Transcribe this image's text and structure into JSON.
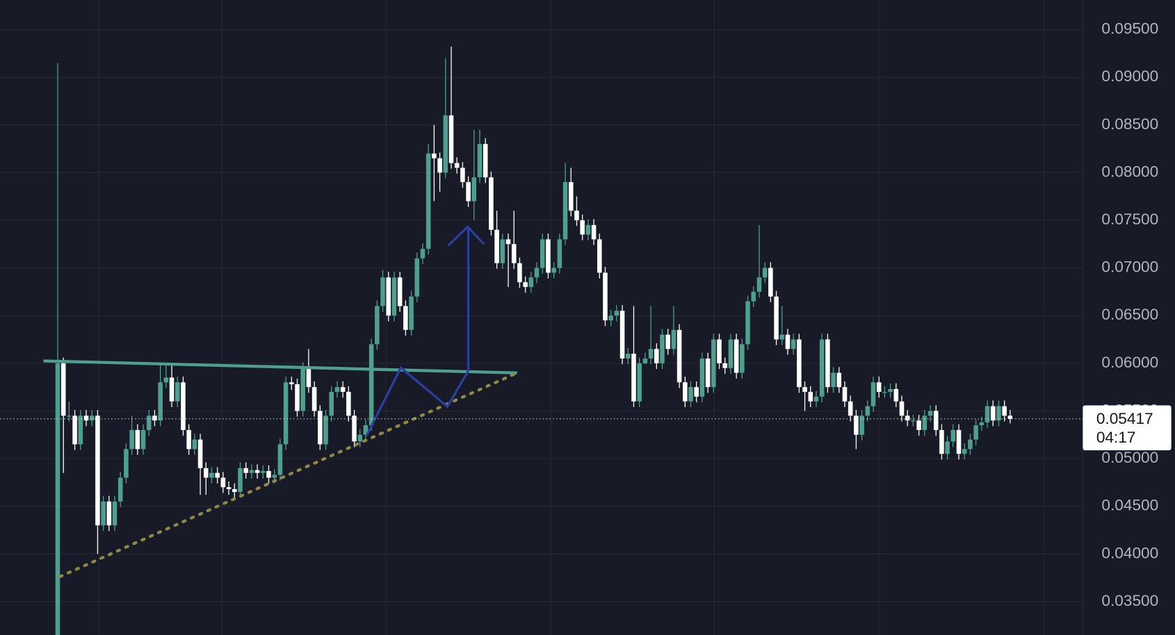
{
  "chart_data": {
    "type": "candlestick",
    "up_color": "#4e9f8f",
    "down_color": "#ffffff",
    "ylim": [
      0.0315,
      0.0981
    ],
    "yticks": [
      {
        "value": 0.095,
        "label": "0.09500"
      },
      {
        "value": 0.09,
        "label": "0.09000"
      },
      {
        "value": 0.085,
        "label": "0.08500"
      },
      {
        "value": 0.08,
        "label": "0.08000"
      },
      {
        "value": 0.075,
        "label": "0.07500"
      },
      {
        "value": 0.07,
        "label": "0.07000"
      },
      {
        "value": 0.065,
        "label": "0.06500"
      },
      {
        "value": 0.06,
        "label": "0.06000"
      },
      {
        "value": 0.055,
        "label": "0.05500"
      },
      {
        "value": 0.05,
        "label": "0.05000"
      },
      {
        "value": 0.045,
        "label": "0.04500"
      },
      {
        "value": 0.04,
        "label": "0.04000"
      },
      {
        "value": 0.035,
        "label": "0.03500"
      }
    ],
    "grid": true,
    "last_price": 0.05417,
    "countdown": "04:17",
    "open": [
      0.0315,
      0.06,
      0.0545,
      0.0545,
      0.0515,
      0.0545,
      0.054,
      0.0545,
      0.043,
      0.0455,
      0.043,
      0.0455,
      0.048,
      0.051,
      0.053,
      0.051,
      0.053,
      0.0545,
      0.054,
      0.058,
      0.0585,
      0.056,
      0.058,
      0.053,
      0.051,
      0.052,
      0.049,
      0.048,
      0.0485,
      0.048,
      0.047,
      0.0468,
      0.0465,
      0.049,
      0.0485,
      0.0488,
      0.0485,
      0.0487,
      0.048,
      0.0483,
      0.0515,
      0.058,
      0.0578,
      0.055,
      0.0595,
      0.0575,
      0.055,
      0.0515,
      0.0545,
      0.057,
      0.0575,
      0.057,
      0.0545,
      0.0518,
      0.0525,
      0.0535,
      0.062,
      0.066,
      0.069,
      0.065,
      0.069,
      0.066,
      0.0635,
      0.067,
      0.071,
      0.072,
      0.082,
      0.0815,
      0.08,
      0.086,
      0.081,
      0.0805,
      0.079,
      0.077,
      0.0795,
      0.083,
      0.0795,
      0.074,
      0.0705,
      0.073,
      0.0725,
      0.0705,
      0.0685,
      0.068,
      0.069,
      0.07,
      0.073,
      0.0695,
      0.07,
      0.073,
      0.079,
      0.076,
      0.075,
      0.0735,
      0.0745,
      0.073,
      0.0695,
      0.0645,
      0.065,
      0.0655,
      0.0605,
      0.061,
      0.056,
      0.06,
      0.0605,
      0.0615,
      0.06,
      0.063,
      0.0615,
      0.0635,
      0.058,
      0.056,
      0.0575,
      0.0565,
      0.0605,
      0.0575,
      0.0625,
      0.06,
      0.0595,
      0.0625,
      0.059,
      0.062,
      0.0665,
      0.0675,
      0.069,
      0.07,
      0.067,
      0.0625,
      0.063,
      0.0615,
      0.0625,
      0.0575,
      0.057,
      0.056,
      0.0565,
      0.0625,
      0.0575,
      0.059,
      0.0575,
      0.056,
      0.0545,
      0.0525,
      0.0545,
      0.0555,
      0.058,
      0.057,
      0.057,
      0.0573,
      0.056,
      0.0545,
      0.054,
      0.054,
      0.053,
      0.0545,
      0.055,
      0.053,
      0.0505,
      0.0518,
      0.053,
      0.0505,
      0.051,
      0.052,
      0.0535,
      0.0538,
      0.0555,
      0.054,
      0.0555,
      0.0545
    ],
    "high": [
      0.0915,
      0.0606,
      0.056,
      0.0551,
      0.0551,
      0.0551,
      0.0551,
      0.0551,
      0.0461,
      0.0461,
      0.0461,
      0.0486,
      0.0516,
      0.0545,
      0.0536,
      0.0536,
      0.0551,
      0.0551,
      0.06,
      0.06,
      0.06,
      0.0586,
      0.0586,
      0.0536,
      0.0526,
      0.0526,
      0.0496,
      0.0491,
      0.0491,
      0.0486,
      0.0476,
      0.0474,
      0.0496,
      0.0496,
      0.0494,
      0.0494,
      0.0493,
      0.0493,
      0.0489,
      0.0521,
      0.0586,
      0.0586,
      0.0584,
      0.0601,
      0.0615,
      0.0581,
      0.0556,
      0.0551,
      0.0576,
      0.0581,
      0.0581,
      0.0576,
      0.0551,
      0.0531,
      0.0541,
      0.0626,
      0.0666,
      0.0698,
      0.0696,
      0.0696,
      0.0696,
      0.0666,
      0.0676,
      0.0716,
      0.0726,
      0.083,
      0.085,
      0.0821,
      0.092,
      0.0932,
      0.0816,
      0.0811,
      0.0796,
      0.0845,
      0.0845,
      0.0836,
      0.0801,
      0.076,
      0.0736,
      0.0736,
      0.076,
      0.0711,
      0.0691,
      0.0696,
      0.0706,
      0.0736,
      0.0736,
      0.0706,
      0.0736,
      0.081,
      0.0805,
      0.0775,
      0.0756,
      0.0751,
      0.0751,
      0.0736,
      0.0701,
      0.0656,
      0.0661,
      0.0661,
      0.0616,
      0.066,
      0.0606,
      0.0611,
      0.066,
      0.0621,
      0.0636,
      0.0636,
      0.066,
      0.0641,
      0.0586,
      0.0581,
      0.0581,
      0.0611,
      0.0611,
      0.0631,
      0.0631,
      0.0606,
      0.0631,
      0.0631,
      0.0626,
      0.0671,
      0.0681,
      0.0745,
      0.0706,
      0.0706,
      0.0676,
      0.066,
      0.0636,
      0.0631,
      0.0631,
      0.0581,
      0.0576,
      0.0571,
      0.0631,
      0.0631,
      0.0596,
      0.0596,
      0.0581,
      0.0566,
      0.0551,
      0.0551,
      0.0561,
      0.0586,
      0.0586,
      0.0576,
      0.0579,
      0.0579,
      0.0566,
      0.0551,
      0.0546,
      0.0546,
      0.0551,
      0.0556,
      0.0556,
      0.0536,
      0.0524,
      0.0536,
      0.0536,
      0.0516,
      0.0526,
      0.0541,
      0.0544,
      0.0561,
      0.0561,
      0.0561,
      0.0561,
      0.0551
    ],
    "low": [
      0.0315,
      0.0485,
      0.0539,
      0.0509,
      0.0509,
      0.0534,
      0.0534,
      0.04,
      0.0424,
      0.0424,
      0.0424,
      0.0449,
      0.0474,
      0.0504,
      0.0504,
      0.0504,
      0.0524,
      0.0534,
      0.0534,
      0.0574,
      0.0554,
      0.0554,
      0.0524,
      0.0504,
      0.0504,
      0.0462,
      0.0462,
      0.0474,
      0.0474,
      0.0464,
      0.0462,
      0.0459,
      0.0459,
      0.0479,
      0.0479,
      0.0479,
      0.0479,
      0.0474,
      0.0474,
      0.0477,
      0.0509,
      0.0572,
      0.0544,
      0.0544,
      0.0569,
      0.0544,
      0.0509,
      0.0509,
      0.0539,
      0.0564,
      0.0564,
      0.0539,
      0.0512,
      0.0512,
      0.0519,
      0.0529,
      0.0614,
      0.0654,
      0.0644,
      0.0644,
      0.0654,
      0.0629,
      0.0629,
      0.0664,
      0.0704,
      0.0714,
      0.077,
      0.078,
      0.0794,
      0.0804,
      0.0799,
      0.0784,
      0.0764,
      0.075,
      0.0789,
      0.0789,
      0.0734,
      0.0699,
      0.0699,
      0.068,
      0.0699,
      0.0679,
      0.0674,
      0.0674,
      0.0684,
      0.0694,
      0.0689,
      0.0689,
      0.0694,
      0.0724,
      0.0754,
      0.0744,
      0.0729,
      0.0729,
      0.0724,
      0.0689,
      0.0639,
      0.0639,
      0.0644,
      0.0599,
      0.0599,
      0.0554,
      0.0554,
      0.0599,
      0.0599,
      0.0594,
      0.0594,
      0.0609,
      0.0609,
      0.0574,
      0.0554,
      0.0554,
      0.0559,
      0.0559,
      0.0569,
      0.0569,
      0.0594,
      0.0589,
      0.0589,
      0.0584,
      0.0584,
      0.0614,
      0.0659,
      0.0669,
      0.0684,
      0.0664,
      0.0619,
      0.0619,
      0.0609,
      0.0609,
      0.0569,
      0.055,
      0.0554,
      0.0554,
      0.0559,
      0.0569,
      0.0569,
      0.0569,
      0.0554,
      0.0539,
      0.051,
      0.0519,
      0.0539,
      0.0549,
      0.0564,
      0.0564,
      0.0564,
      0.0554,
      0.0539,
      0.0534,
      0.0534,
      0.0524,
      0.0524,
      0.0539,
      0.0524,
      0.0499,
      0.0499,
      0.0512,
      0.0499,
      0.0499,
      0.0504,
      0.0514,
      0.0529,
      0.0532,
      0.0534,
      0.0534,
      0.0539,
      0.0537
    ],
    "close": [
      0.06,
      0.0545,
      0.0545,
      0.0515,
      0.0545,
      0.054,
      0.0545,
      0.043,
      0.0455,
      0.043,
      0.0455,
      0.048,
      0.051,
      0.053,
      0.051,
      0.053,
      0.0545,
      0.054,
      0.058,
      0.0585,
      0.056,
      0.058,
      0.053,
      0.051,
      0.052,
      0.049,
      0.048,
      0.0485,
      0.048,
      0.047,
      0.0468,
      0.0465,
      0.049,
      0.0485,
      0.0488,
      0.0485,
      0.0487,
      0.048,
      0.0483,
      0.0515,
      0.058,
      0.0578,
      0.055,
      0.0595,
      0.0575,
      0.055,
      0.0515,
      0.0545,
      0.057,
      0.0575,
      0.057,
      0.0545,
      0.0518,
      0.0525,
      0.0535,
      0.062,
      0.066,
      0.069,
      0.065,
      0.069,
      0.066,
      0.0635,
      0.067,
      0.071,
      0.072,
      0.082,
      0.0815,
      0.08,
      0.086,
      0.081,
      0.0805,
      0.079,
      0.077,
      0.0795,
      0.083,
      0.0795,
      0.074,
      0.0705,
      0.073,
      0.0725,
      0.0705,
      0.0685,
      0.068,
      0.069,
      0.07,
      0.073,
      0.0695,
      0.07,
      0.073,
      0.079,
      0.076,
      0.075,
      0.0735,
      0.0745,
      0.073,
      0.0695,
      0.0645,
      0.065,
      0.0655,
      0.0605,
      0.061,
      0.056,
      0.06,
      0.0605,
      0.0615,
      0.06,
      0.063,
      0.0615,
      0.0635,
      0.058,
      0.056,
      0.0575,
      0.0565,
      0.0605,
      0.0575,
      0.0625,
      0.06,
      0.0595,
      0.0625,
      0.059,
      0.062,
      0.0665,
      0.0675,
      0.069,
      0.07,
      0.067,
      0.0625,
      0.063,
      0.0615,
      0.0625,
      0.0575,
      0.057,
      0.056,
      0.0565,
      0.0625,
      0.0575,
      0.059,
      0.0575,
      0.056,
      0.0545,
      0.0525,
      0.0545,
      0.0555,
      0.058,
      0.057,
      0.057,
      0.0573,
      0.056,
      0.0545,
      0.054,
      0.054,
      0.053,
      0.0545,
      0.055,
      0.053,
      0.0505,
      0.0518,
      0.053,
      0.0505,
      0.051,
      0.052,
      0.0535,
      0.0538,
      0.0555,
      0.054,
      0.0555,
      0.0545,
      0.05417
    ]
  }
}
